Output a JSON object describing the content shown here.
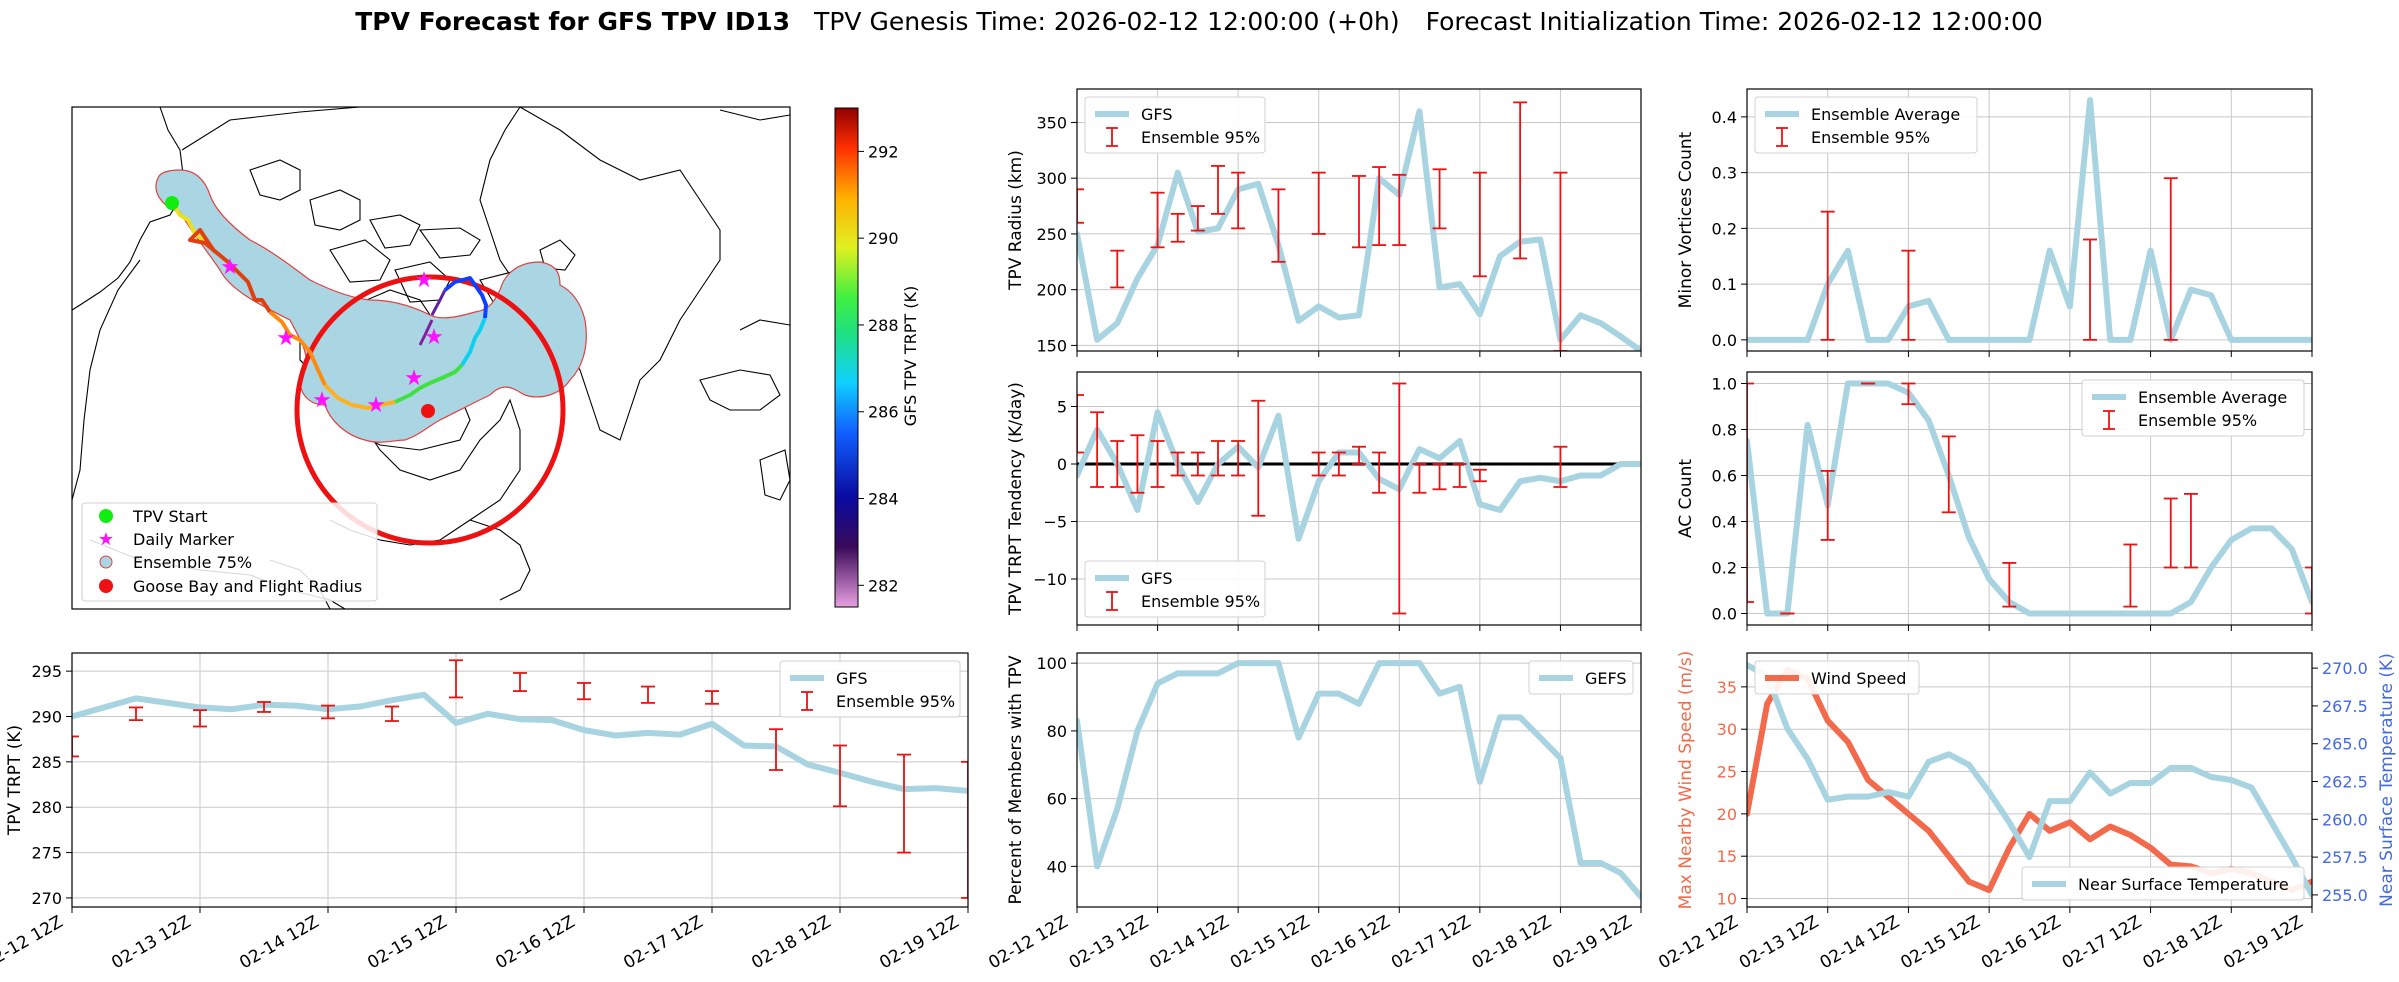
{
  "header": {
    "title_bold": "TPV Forecast for GFS TPV ID13",
    "title_genesis": "TPV Genesis Time: 2026-02-12 12:00:00 (+0h)",
    "title_init": "Forecast Initialization Time: 2026-02-12 12:00:00"
  },
  "colors": {
    "gfs_line": "#a8d4e2",
    "ensemble_bar": "#ee1111",
    "wind": "#f26a4b",
    "temp_axis": "#4169e1",
    "grid": "#c8c8c8",
    "ensemble_fill": "#aad6e4",
    "goose_circle": "#ee1111"
  },
  "xaxis": {
    "ticks": [
      "02-12 12Z",
      "02-13 12Z",
      "02-14 12Z",
      "02-15 12Z",
      "02-16 12Z",
      "02-17 12Z",
      "02-18 12Z",
      "02-19 12Z"
    ],
    "range": [
      0,
      7
    ]
  },
  "map": {
    "legend": [
      "TPV Start",
      "Daily Marker",
      "Ensemble 75%",
      "Goose Bay and Flight Radius"
    ],
    "colorbar": {
      "label": "GFS TPV TRPT (K)",
      "range": [
        281.5,
        293
      ],
      "ticks": [
        "282",
        "284",
        "286",
        "288",
        "290",
        "292"
      ]
    },
    "track": [
      {
        "t": 0,
        "T": 290.8
      },
      {
        "t": 0.5,
        "T": 291.5
      },
      {
        "t": 1,
        "T": 292
      },
      {
        "t": 1.5,
        "T": 291.8
      },
      {
        "t": 2,
        "T": 291.2
      },
      {
        "t": 2.5,
        "T": 290.5
      },
      {
        "t": 3,
        "T": 290
      },
      {
        "t": 3.5,
        "T": 289.5
      },
      {
        "t": 4,
        "T": 288.5
      },
      {
        "t": 4.5,
        "T": 287.5
      },
      {
        "t": 5,
        "T": 286
      },
      {
        "t": 5.5,
        "T": 285
      },
      {
        "t": 6,
        "T": 284.3
      },
      {
        "t": 6.5,
        "T": 283.5
      },
      {
        "t": 7,
        "T": 282.5
      }
    ]
  },
  "chart_data": [
    {
      "id": "trpt",
      "type": "line",
      "title": "",
      "xlabel": "",
      "ylabel": "TPV TRPT (K)",
      "ylim": [
        269,
        297
      ],
      "yticks": [
        "270",
        "275",
        "280",
        "285",
        "290",
        "295"
      ],
      "legend": [
        "GFS",
        "Ensemble 95%"
      ],
      "legend_loc": "top-right",
      "series": [
        {
          "name": "GFS",
          "x": [
            0,
            0.5,
            1,
            1.25,
            1.5,
            1.75,
            2,
            2.25,
            2.5,
            2.75,
            3,
            3.25,
            3.5,
            3.75,
            4,
            4.25,
            4.5,
            4.75,
            5,
            5.25,
            5.5,
            5.75,
            6,
            6.25,
            6.5,
            6.75,
            7
          ],
          "values": [
            290,
            292,
            291,
            290.8,
            291.3,
            291.2,
            290.8,
            291.1,
            291.8,
            292.4,
            289.3,
            290.3,
            289.7,
            289.6,
            288.5,
            287.9,
            288.2,
            288,
            289.2,
            286.8,
            286.7,
            284.7,
            283.8,
            282.8,
            282,
            282.1,
            281.8
          ]
        }
      ],
      "errorbars": [
        {
          "x": 0,
          "lo": 285.6,
          "hi": 287.8
        },
        {
          "x": 0.5,
          "lo": 289.6,
          "hi": 291
        },
        {
          "x": 1,
          "lo": 288.9,
          "hi": 290.7
        },
        {
          "x": 1.5,
          "lo": 290.5,
          "hi": 291.6
        },
        {
          "x": 2,
          "lo": 289.8,
          "hi": 291.2
        },
        {
          "x": 2.5,
          "lo": 289.5,
          "hi": 291.1
        },
        {
          "x": 3,
          "lo": 292.1,
          "hi": 296.2
        },
        {
          "x": 3.5,
          "lo": 292.8,
          "hi": 294.8
        },
        {
          "x": 4,
          "lo": 291.9,
          "hi": 293.7
        },
        {
          "x": 4.5,
          "lo": 291.5,
          "hi": 293.3
        },
        {
          "x": 5,
          "lo": 291.4,
          "hi": 292.8
        },
        {
          "x": 5.5,
          "lo": 284.1,
          "hi": 288.6
        },
        {
          "x": 6,
          "lo": 280.1,
          "hi": 286.8
        },
        {
          "x": 6.5,
          "lo": 275,
          "hi": 285.8
        },
        {
          "x": 7,
          "lo": 270,
          "hi": 285
        }
      ]
    },
    {
      "id": "radius",
      "type": "line",
      "ylabel": "TPV Radius (km)",
      "ylim": [
        145,
        380
      ],
      "yticks": [
        "150",
        "200",
        "250",
        "300",
        "350"
      ],
      "legend": [
        "GFS",
        "Ensemble 95%"
      ],
      "legend_loc": "top-left",
      "series": [
        {
          "name": "GFS",
          "x": [
            0,
            0.25,
            0.5,
            0.75,
            1,
            1.25,
            1.5,
            1.75,
            2,
            2.25,
            2.5,
            2.75,
            3,
            3.25,
            3.5,
            3.75,
            4,
            4.25,
            4.5,
            4.75,
            5,
            5.25,
            5.5,
            5.75,
            6,
            6.25,
            6.5,
            6.75,
            7
          ],
          "values": [
            250,
            155,
            170,
            210,
            240,
            305,
            252,
            255,
            290,
            295,
            240,
            172,
            185,
            175,
            177,
            300,
            285,
            360,
            202,
            205,
            178,
            230,
            243,
            245,
            155,
            177,
            170,
            158,
            145
          ]
        }
      ],
      "errorbars": [
        {
          "x": 0,
          "lo": 260,
          "hi": 290
        },
        {
          "x": 0.5,
          "lo": 202,
          "hi": 235
        },
        {
          "x": 1,
          "lo": 238,
          "hi": 287
        },
        {
          "x": 1.25,
          "lo": 243,
          "hi": 268
        },
        {
          "x": 1.5,
          "lo": 253,
          "hi": 275
        },
        {
          "x": 1.75,
          "lo": 268,
          "hi": 311
        },
        {
          "x": 2,
          "lo": 255,
          "hi": 305
        },
        {
          "x": 2.5,
          "lo": 225,
          "hi": 290
        },
        {
          "x": 3,
          "lo": 250,
          "hi": 305
        },
        {
          "x": 3.5,
          "lo": 238,
          "hi": 302
        },
        {
          "x": 3.75,
          "lo": 240,
          "hi": 310
        },
        {
          "x": 4,
          "lo": 240,
          "hi": 303
        },
        {
          "x": 4.5,
          "lo": 255,
          "hi": 308
        },
        {
          "x": 5,
          "lo": 212,
          "hi": 305
        },
        {
          "x": 5.5,
          "lo": 228,
          "hi": 368
        },
        {
          "x": 6,
          "lo": 145,
          "hi": 305
        }
      ]
    },
    {
      "id": "tendency",
      "type": "line",
      "ylabel": "TPV TRPT Tendency (K/day)",
      "ylim": [
        -14,
        8
      ],
      "yticks": [
        "−10",
        "−5",
        "0",
        "5"
      ],
      "legend": [
        "GFS",
        "Ensemble 95%"
      ],
      "legend_loc": "bottom-left",
      "series": [
        {
          "name": "GFS",
          "x": [
            0,
            0.25,
            0.5,
            0.75,
            1,
            1.25,
            1.5,
            1.75,
            2,
            2.25,
            2.5,
            2.75,
            3,
            3.25,
            3.5,
            3.75,
            4,
            4.25,
            4.5,
            4.75,
            5,
            5.25,
            5.5,
            5.75,
            6,
            6.25,
            6.5,
            6.75,
            7
          ],
          "values": [
            -1,
            3,
            0,
            -4,
            4.5,
            0,
            -3.3,
            0,
            1.5,
            -0.3,
            4.2,
            -6.5,
            -1.5,
            1,
            1,
            -1.3,
            -2.2,
            1.3,
            0.5,
            2,
            -3.5,
            -4,
            -1.5,
            -1.2,
            -1.5,
            -1,
            -1,
            0,
            0
          ]
        }
      ],
      "errorbars": [
        {
          "x": 0,
          "lo": 1,
          "hi": 6
        },
        {
          "x": 0.25,
          "lo": -2,
          "hi": 4.5
        },
        {
          "x": 0.5,
          "lo": -2,
          "hi": 2
        },
        {
          "x": 0.75,
          "lo": -2.5,
          "hi": 2.5
        },
        {
          "x": 1,
          "lo": -2,
          "hi": 2
        },
        {
          "x": 1.25,
          "lo": -1,
          "hi": 1
        },
        {
          "x": 1.5,
          "lo": -1,
          "hi": 1
        },
        {
          "x": 1.75,
          "lo": -1,
          "hi": 2
        },
        {
          "x": 2,
          "lo": -1,
          "hi": 2
        },
        {
          "x": 2.25,
          "lo": -4.5,
          "hi": 5.5
        },
        {
          "x": 3,
          "lo": -1,
          "hi": 1
        },
        {
          "x": 3.25,
          "lo": -1,
          "hi": 1
        },
        {
          "x": 3.5,
          "lo": 0,
          "hi": 1.5
        },
        {
          "x": 3.75,
          "lo": -2.5,
          "hi": 1
        },
        {
          "x": 4,
          "lo": -13,
          "hi": 7
        },
        {
          "x": 4.25,
          "lo": -2.5,
          "hi": 0
        },
        {
          "x": 4.5,
          "lo": -2.2,
          "hi": 0
        },
        {
          "x": 4.75,
          "lo": -2,
          "hi": 0
        },
        {
          "x": 5,
          "lo": -1.5,
          "hi": -0.5
        },
        {
          "x": 6,
          "lo": -2,
          "hi": 1.5
        }
      ]
    },
    {
      "id": "members",
      "type": "line",
      "ylabel": "Percent of Members with TPV",
      "ylim": [
        28,
        103
      ],
      "yticks": [
        "40",
        "60",
        "80",
        "100"
      ],
      "legend": [
        "GEFS"
      ],
      "legend_loc": "top-right",
      "series": [
        {
          "name": "GEFS",
          "x": [
            0,
            0.25,
            0.5,
            0.75,
            1,
            1.25,
            1.5,
            1.75,
            2,
            2.25,
            2.5,
            2.75,
            3,
            3.25,
            3.5,
            3.75,
            4,
            4.25,
            4.5,
            4.75,
            5,
            5.25,
            5.5,
            5.75,
            6,
            6.25,
            6.5,
            6.75,
            7
          ],
          "values": [
            83,
            40,
            57,
            80,
            94,
            97,
            97,
            97,
            100,
            100,
            100,
            78,
            91,
            91,
            88,
            100,
            100,
            100,
            91,
            93,
            65,
            84,
            84,
            78,
            72,
            41,
            41,
            38,
            31
          ]
        }
      ],
      "errorbars": []
    },
    {
      "id": "minor",
      "type": "line",
      "ylabel": "Minor Vortices Count",
      "ylim": [
        -0.02,
        0.45
      ],
      "yticks": [
        "0.0",
        "0.1",
        "0.2",
        "0.3",
        "0.4"
      ],
      "legend": [
        "Ensemble Average",
        "Ensemble 95%"
      ],
      "legend_loc": "top-left",
      "series": [
        {
          "name": "Ensemble Average",
          "x": [
            0,
            0.25,
            0.5,
            0.75,
            1,
            1.25,
            1.5,
            1.75,
            2,
            2.25,
            2.5,
            2.75,
            3,
            3.25,
            3.5,
            3.75,
            4,
            4.25,
            4.5,
            4.75,
            5,
            5.25,
            5.5,
            5.75,
            6,
            6.25,
            6.5,
            6.75,
            7
          ],
          "values": [
            0,
            0,
            0,
            0,
            0.1,
            0.16,
            0,
            0,
            0.06,
            0.07,
            0,
            0,
            0,
            0,
            0,
            0.16,
            0.06,
            0.43,
            0,
            0,
            0.16,
            0,
            0.09,
            0.08,
            0,
            0,
            0,
            0,
            0
          ]
        }
      ],
      "errorbars": [
        {
          "x": 1,
          "lo": 0,
          "hi": 0.23
        },
        {
          "x": 2,
          "lo": 0,
          "hi": 0.16
        },
        {
          "x": 4.25,
          "lo": 0,
          "hi": 0.18
        },
        {
          "x": 5.25,
          "lo": 0,
          "hi": 0.29
        }
      ]
    },
    {
      "id": "ac",
      "type": "line",
      "ylabel": "AC Count",
      "ylim": [
        -0.05,
        1.05
      ],
      "yticks": [
        "0.0",
        "0.2",
        "0.4",
        "0.6",
        "0.8",
        "1.0"
      ],
      "legend": [
        "Ensemble Average",
        "Ensemble 95%"
      ],
      "legend_loc": "top-right",
      "series": [
        {
          "name": "Ensemble Average",
          "x": [
            0,
            0.25,
            0.5,
            0.75,
            1,
            1.25,
            1.5,
            1.75,
            2,
            2.25,
            2.5,
            2.75,
            3,
            3.25,
            3.5,
            3.75,
            4,
            4.25,
            4.5,
            4.75,
            5,
            5.25,
            5.5,
            5.75,
            6,
            6.25,
            6.5,
            6.75,
            7
          ],
          "values": [
            0.75,
            0,
            0,
            0.82,
            0.47,
            1,
            1,
            1,
            0.96,
            0.84,
            0.6,
            0.33,
            0.15,
            0.05,
            0,
            0,
            0,
            0,
            0,
            0,
            0,
            0,
            0.05,
            0.2,
            0.32,
            0.37,
            0.37,
            0.28,
            0.05
          ]
        }
      ],
      "errorbars": [
        {
          "x": 0,
          "lo": 0.05,
          "hi": 1
        },
        {
          "x": 0.5,
          "lo": 0,
          "hi": 0
        },
        {
          "x": 1,
          "lo": 0.32,
          "hi": 0.62
        },
        {
          "x": 1.5,
          "lo": 1,
          "hi": 1
        },
        {
          "x": 2,
          "lo": 0.91,
          "hi": 1
        },
        {
          "x": 2.5,
          "lo": 0.44,
          "hi": 0.77
        },
        {
          "x": 3.25,
          "lo": 0.03,
          "hi": 0.22
        },
        {
          "x": 4.75,
          "lo": 0.03,
          "hi": 0.3
        },
        {
          "x": 5.25,
          "lo": 0.2,
          "hi": 0.5
        },
        {
          "x": 5.5,
          "lo": 0.2,
          "hi": 0.52
        },
        {
          "x": 7,
          "lo": 0,
          "hi": 0.2
        }
      ]
    },
    {
      "id": "wind_temp",
      "type": "line",
      "ylabel": "Max Nearby Wind Speed (m/s)",
      "ylabel_right": "Near Surface Temperature (K)",
      "ylim": [
        9,
        39
      ],
      "ylim_right": [
        254.2,
        271
      ],
      "yticks": [
        "10",
        "15",
        "20",
        "25",
        "30",
        "35"
      ],
      "yticks_right": [
        "255.0",
        "257.5",
        "260.0",
        "262.5",
        "265.0",
        "267.5",
        "270.0"
      ],
      "legend": [
        "Wind Speed",
        "Near Surface Temperature"
      ],
      "legend_loc": "top-left / bottom-right",
      "series": [
        {
          "name": "Wind Speed",
          "x": [
            0,
            0.25,
            0.5,
            0.75,
            1,
            1.25,
            1.5,
            1.75,
            2,
            2.25,
            2.5,
            2.75,
            3,
            3.25,
            3.5,
            3.75,
            4,
            4.25,
            4.5,
            4.75,
            5,
            5.25,
            5.5,
            5.75,
            6,
            6.25,
            6.5,
            6.75,
            7
          ],
          "values": [
            20,
            33,
            37,
            36,
            31,
            28.5,
            24,
            22,
            20,
            18,
            15,
            12,
            11,
            16,
            20,
            18,
            19,
            17,
            18.5,
            17.5,
            16,
            14,
            13.8,
            13,
            13.5,
            13,
            12,
            11,
            12
          ]
        },
        {
          "name": "Near Surface Temperature",
          "x": [
            0,
            0.25,
            0.5,
            0.75,
            1,
            1.25,
            1.5,
            1.75,
            2,
            2.25,
            2.5,
            2.75,
            3,
            3.25,
            3.5,
            3.75,
            4,
            4.25,
            4.5,
            4.75,
            5,
            5.25,
            5.5,
            5.75,
            6,
            6.25,
            6.5,
            6.75,
            7
          ],
          "values": [
            270.2,
            269.5,
            266,
            264,
            261.3,
            261.5,
            261.5,
            261.8,
            261.5,
            263.8,
            264.3,
            263.6,
            261.8,
            259.8,
            257.5,
            261.2,
            261.2,
            263.1,
            261.7,
            262.4,
            262.4,
            263.4,
            263.4,
            262.8,
            262.6,
            262.1,
            259.8,
            257.5,
            255
          ]
        }
      ],
      "errorbars": []
    }
  ]
}
